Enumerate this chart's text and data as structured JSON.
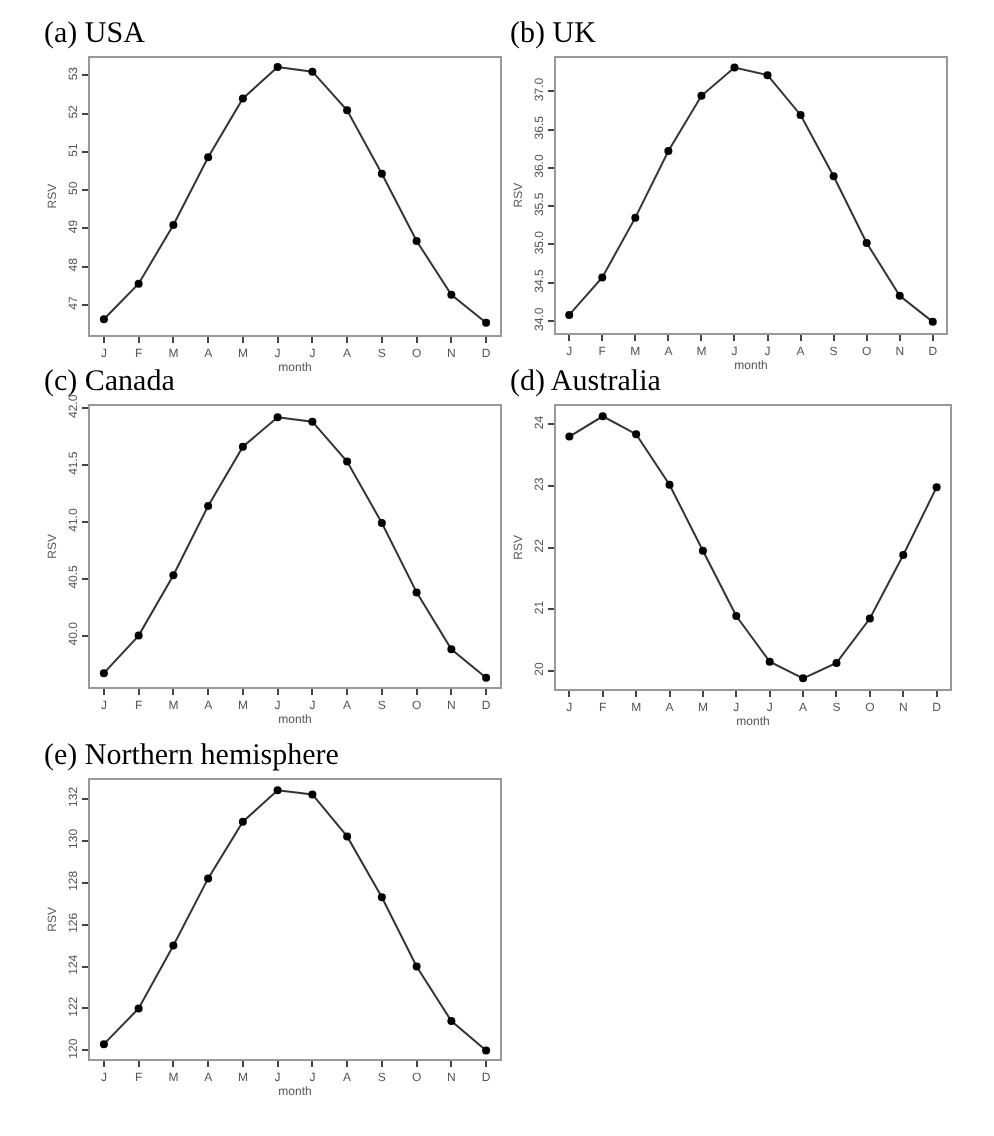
{
  "chart_data": [
    {
      "type": "line",
      "title": "(a) USA",
      "xlabel": "month",
      "ylabel": "RSV",
      "categories": [
        "J",
        "F",
        "M",
        "A",
        "M",
        "J",
        "J",
        "A",
        "S",
        "O",
        "N",
        "D"
      ],
      "series": [
        {
          "color": "#333333",
          "values": [
            46.62,
            47.55,
            49.09,
            50.86,
            52.4,
            53.22,
            53.1,
            52.09,
            50.43,
            48.67,
            47.26,
            46.53
          ]
        }
      ],
      "ylim": [
        46.22,
        53.47
      ],
      "yticks": [
        47,
        48,
        49,
        50,
        51,
        52,
        53
      ],
      "marker": "circle",
      "line_style": "solid"
    },
    {
      "type": "line",
      "title": "(b) UK",
      "xlabel": "month",
      "ylabel": "RSV",
      "categories": [
        "J",
        "F",
        "M",
        "A",
        "M",
        "J",
        "J",
        "A",
        "S",
        "O",
        "N",
        "D"
      ],
      "series": [
        {
          "color": "#333333",
          "values": [
            34.08,
            34.57,
            35.35,
            36.22,
            36.94,
            37.31,
            37.21,
            36.69,
            35.89,
            35.02,
            34.33,
            33.99
          ]
        }
      ],
      "ylim": [
        33.85,
        37.44
      ],
      "yticks": [
        {
          "value": 34,
          "label": "34.0"
        },
        34.5,
        {
          "value": 35,
          "label": "35.0"
        },
        35.5,
        {
          "value": 36,
          "label": "36.0"
        },
        36.5,
        {
          "value": 37,
          "label": "37.0"
        }
      ],
      "marker": "circle",
      "line_style": "solid"
    },
    {
      "type": "line",
      "title": "(c) Canada",
      "xlabel": "month",
      "ylabel": "RSV",
      "categories": [
        "J",
        "F",
        "M",
        "A",
        "M",
        "J",
        "J",
        "A",
        "S",
        "O",
        "N",
        "D"
      ],
      "series": [
        {
          "color": "#333333",
          "values": [
            39.67,
            40.0,
            40.53,
            41.14,
            41.66,
            41.92,
            41.88,
            41.53,
            40.99,
            40.38,
            39.88,
            39.63
          ]
        }
      ],
      "ylim": [
        39.55,
        42.02
      ],
      "yticks": [
        {
          "value": 40,
          "label": "40.0"
        },
        40.5,
        {
          "value": 41,
          "label": "41.0"
        },
        41.5,
        {
          "value": 42,
          "label": "42.0"
        }
      ],
      "marker": "circle",
      "line_style": "solid"
    },
    {
      "type": "line",
      "title": "(d) Australia",
      "xlabel": "month",
      "ylabel": "RSV",
      "categories": [
        "J",
        "F",
        "M",
        "A",
        "M",
        "J",
        "J",
        "A",
        "S",
        "O",
        "N",
        "D"
      ],
      "series": [
        {
          "color": "#333333",
          "values": [
            23.8,
            24.13,
            23.84,
            23.02,
            21.95,
            20.89,
            20.15,
            19.88,
            20.13,
            20.85,
            21.88,
            22.98
          ]
        }
      ],
      "ylim": [
        19.71,
        24.3
      ],
      "yticks": [
        20,
        21,
        22,
        23,
        24
      ],
      "marker": "circle",
      "line_style": "solid"
    },
    {
      "type": "line",
      "title": "(e) Northern hemisphere",
      "xlabel": "month",
      "ylabel": "RSV",
      "categories": [
        "J",
        "F",
        "M",
        "A",
        "M",
        "J",
        "J",
        "A",
        "S",
        "O",
        "N",
        "D"
      ],
      "series": [
        {
          "color": "#333333",
          "values": [
            120.3,
            122.0,
            125.0,
            128.2,
            130.9,
            132.4,
            132.2,
            130.2,
            127.3,
            124.0,
            121.4,
            120.0
          ]
        }
      ],
      "ylim": [
        119.6,
        132.9
      ],
      "yticks": [
        120,
        122,
        124,
        126,
        128,
        130,
        132
      ],
      "marker": "circle",
      "line_style": "solid"
    }
  ]
}
